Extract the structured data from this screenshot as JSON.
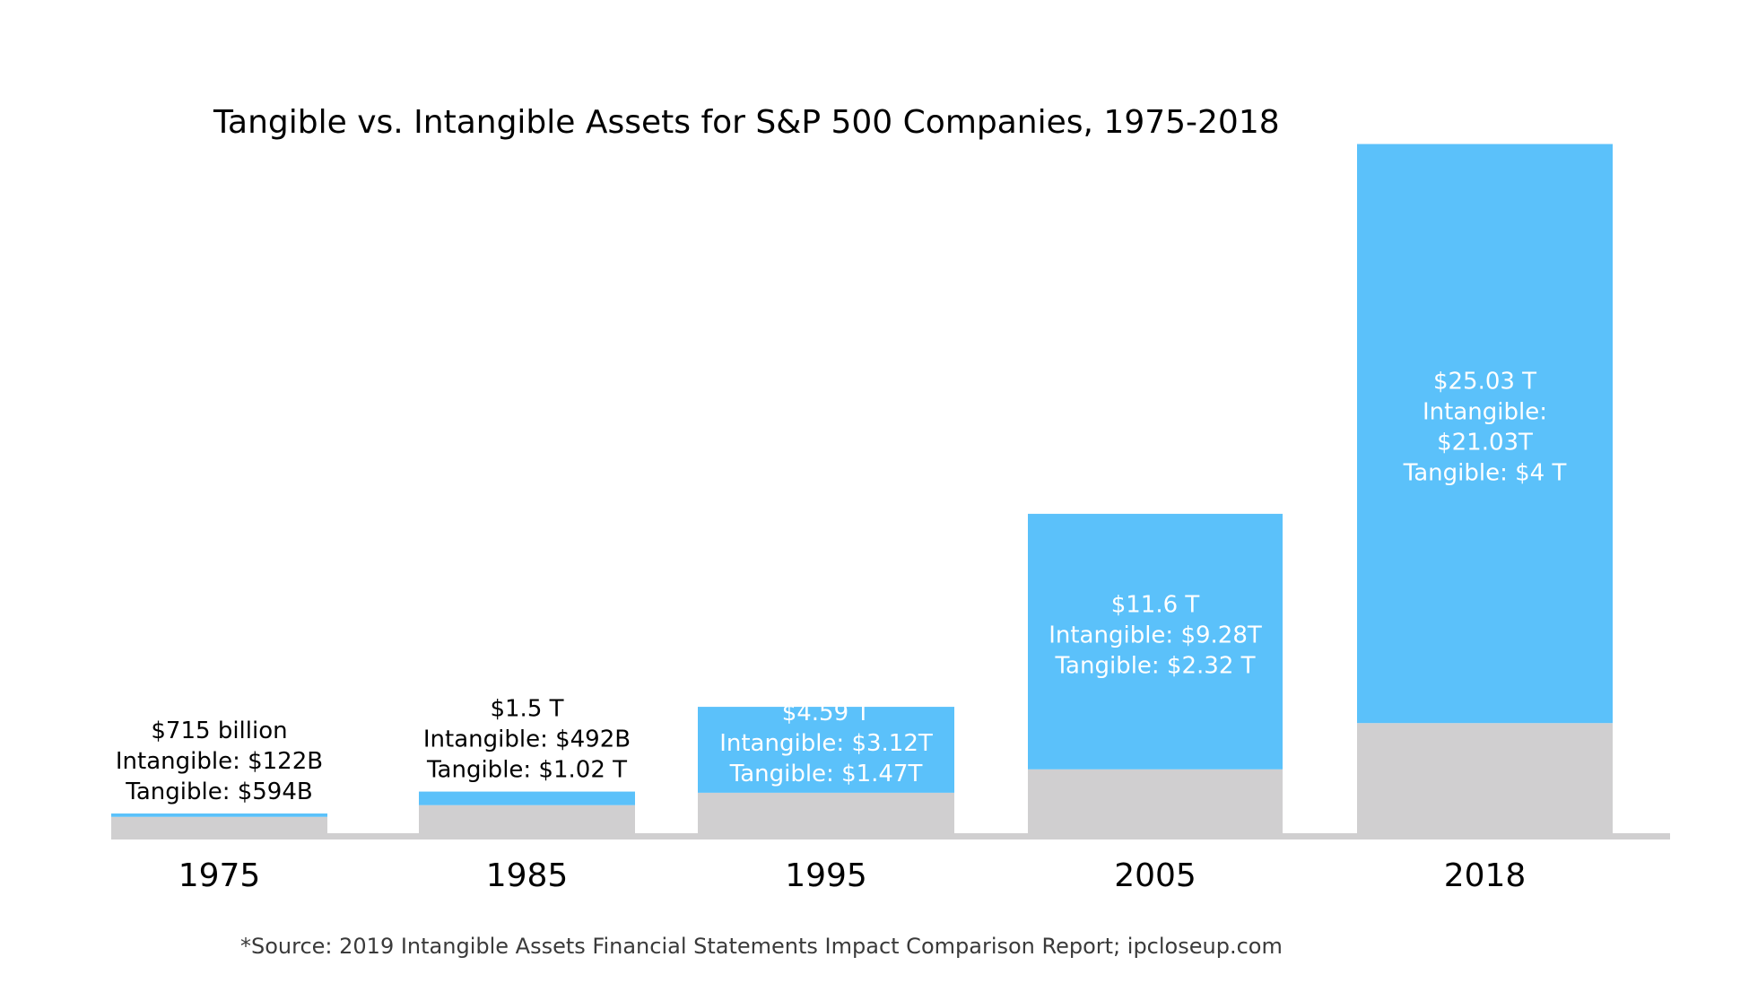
{
  "chart_data": {
    "type": "bar",
    "stacked": true,
    "title": "Tangible vs. Intangible Assets for S&P 500 Companies, 1975-2018",
    "source": "*Source: 2019 Intangible Assets Financial Statements Impact Comparison Report; ipcloseup.com",
    "categories": [
      "1975",
      "1985",
      "1995",
      "2005",
      "2018"
    ],
    "units": "trillion USD",
    "series": [
      {
        "name": "Tangible",
        "color": "#d0cfd0",
        "values": [
          0.594,
          1.02,
          1.47,
          2.32,
          4.0
        ]
      },
      {
        "name": "Intangible",
        "color": "#5bc1fa",
        "values": [
          0.122,
          0.492,
          3.12,
          9.28,
          21.03
        ]
      }
    ],
    "labels": [
      {
        "lines": [
          "$715 billion",
          "Intangible: $122B",
          "Tangible: $594B"
        ],
        "placement": "above",
        "color": "#000000"
      },
      {
        "lines": [
          "$1.5 T",
          "Intangible: $492B",
          "Tangible: $1.02 T"
        ],
        "placement": "above",
        "color": "#000000"
      },
      {
        "lines": [
          "$4.59 T",
          "Intangible: $3.12T",
          "Tangible: $1.47T"
        ],
        "placement": "inside",
        "color": "#ffffff"
      },
      {
        "lines": [
          "$11.6 T",
          "Intangible: $9.28T",
          "Tangible: $2.32 T"
        ],
        "placement": "inside",
        "color": "#ffffff"
      },
      {
        "lines": [
          "$25.03 T",
          "Intangible:",
          "$21.03T",
          "Tangible: $4 T"
        ],
        "placement": "inside",
        "color": "#ffffff"
      }
    ],
    "grid": false,
    "legend": "none"
  }
}
